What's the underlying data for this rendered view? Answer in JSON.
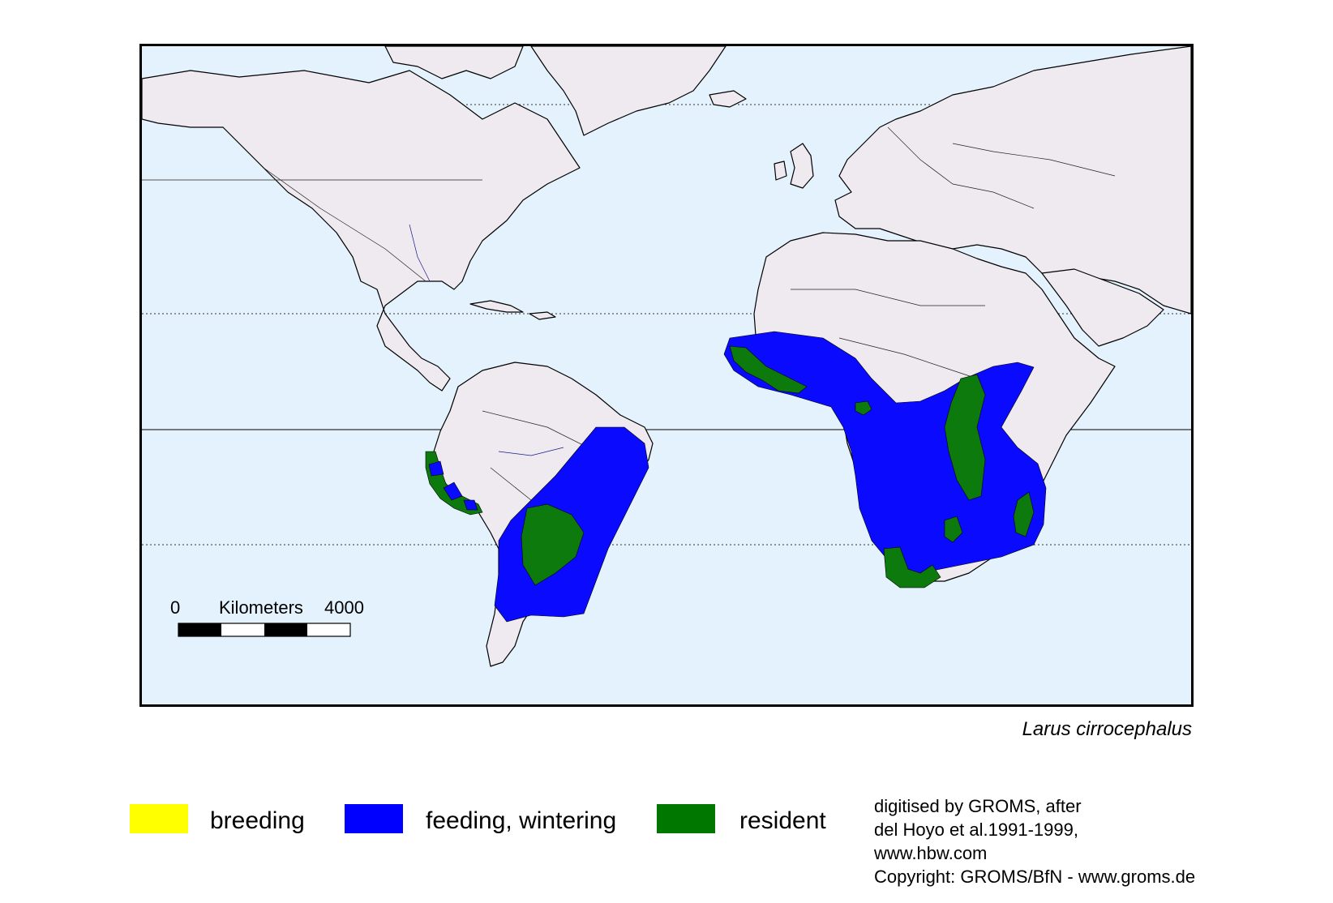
{
  "map": {
    "species": "Larus cirrocephalus",
    "scale_bar": {
      "start": "0",
      "unit": "Kilometers",
      "end": "4000"
    }
  },
  "legend": {
    "items": [
      {
        "label": "breeding",
        "color": "#ffff00"
      },
      {
        "label": "feeding, wintering",
        "color": "#0000ff"
      },
      {
        "label": "resident",
        "color": "#007800"
      }
    ]
  },
  "credits": {
    "lines": [
      "digitised by GROMS, after",
      "del Hoyo et al.1991-1999,",
      "www.hbw.com",
      "Copyright: GROMS/BfN - www.groms.de"
    ]
  },
  "colors": {
    "ocean": "#e4f2fd",
    "land": "#eeeaef",
    "feeding_wintering": "#0000ff",
    "resident": "#007800"
  }
}
